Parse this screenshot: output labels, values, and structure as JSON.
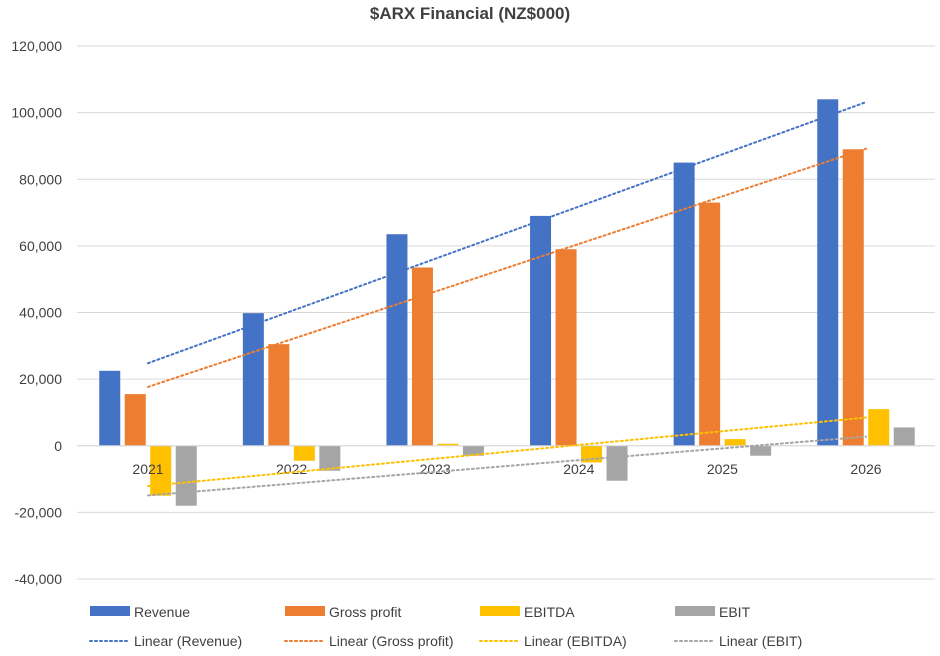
{
  "chart_data": {
    "type": "bar",
    "title": "$ARX Financial (NZ$000)",
    "xlabel": "",
    "ylabel": "",
    "categories": [
      "2021",
      "2022",
      "2023",
      "2024",
      "2025",
      "2026"
    ],
    "ylim": [
      -40000,
      120000
    ],
    "yticks": [
      -40000,
      -20000,
      0,
      20000,
      40000,
      60000,
      80000,
      100000,
      120000
    ],
    "ytick_labels": [
      "-40,000",
      "-20,000",
      "0",
      "20,000",
      "40,000",
      "60,000",
      "80,000",
      "100,000",
      "120,000"
    ],
    "grid": true,
    "legend_position": "bottom",
    "series": [
      {
        "name": "Revenue",
        "color": "#4472C4",
        "values": [
          22500,
          39800,
          63500,
          69000,
          85000,
          104000
        ]
      },
      {
        "name": "Gross profit",
        "color": "#ED7D31",
        "values": [
          15500,
          30500,
          53500,
          59000,
          73000,
          89000
        ]
      },
      {
        "name": "EBITDA",
        "color": "#FFC000",
        "values": [
          -15000,
          -4500,
          600,
          -5000,
          2000,
          11000
        ]
      },
      {
        "name": "EBIT",
        "color": "#A5A5A5",
        "values": [
          -18000,
          -7500,
          -3000,
          -10500,
          -3000,
          5500
        ]
      }
    ],
    "trendlines": [
      {
        "name": "Linear (Revenue)",
        "series": "Revenue",
        "type": "linear",
        "color": "#4472C4"
      },
      {
        "name": "Linear (Gross profit)",
        "series": "Gross profit",
        "type": "linear",
        "color": "#ED7D31"
      },
      {
        "name": "Linear (EBITDA)",
        "series": "EBITDA",
        "type": "linear",
        "color": "#FFC000"
      },
      {
        "name": "Linear (EBIT)",
        "series": "EBIT",
        "type": "linear",
        "color": "#A5A5A5"
      }
    ]
  }
}
